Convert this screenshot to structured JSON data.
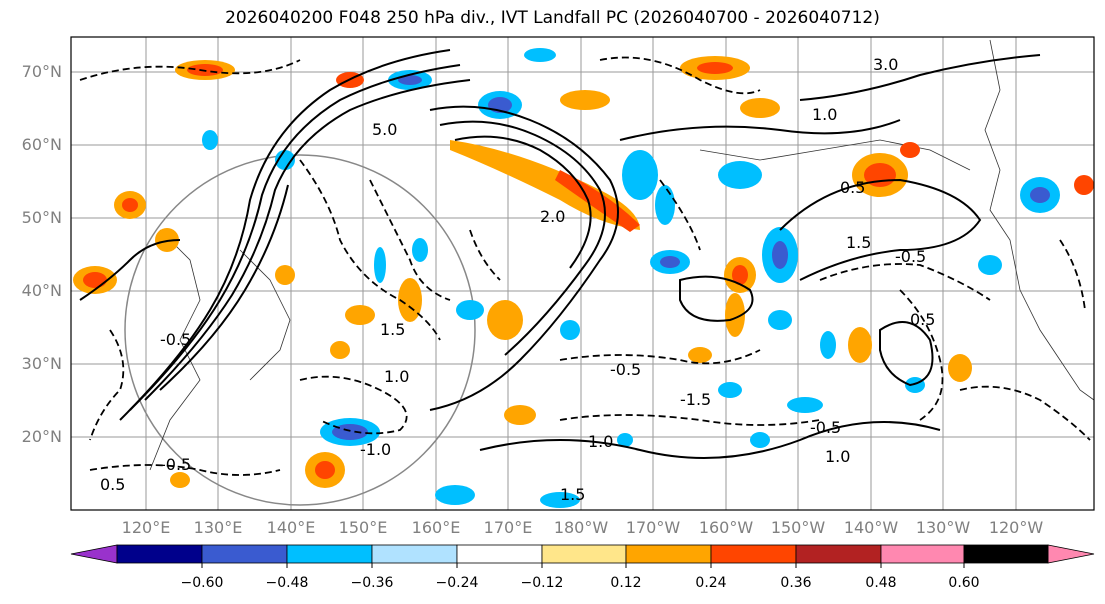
{
  "title": "2026040200 F048 250 hPa div., IVT Landfall PC (2026040700 - 2026040712)",
  "map": {
    "region": "North Pacific",
    "lat_labels": [
      "70°N",
      "60°N",
      "50°N",
      "40°N",
      "30°N",
      "20°N"
    ],
    "lon_labels": [
      "120°E",
      "130°E",
      "140°E",
      "150°E",
      "160°E",
      "170°E",
      "180°W",
      "170°W",
      "160°W",
      "150°W",
      "140°W",
      "130°W",
      "120°W"
    ],
    "contour_labels": [
      {
        "text": "5.0"
      },
      {
        "text": "3.0"
      },
      {
        "text": "1.0"
      },
      {
        "text": "0.5"
      },
      {
        "text": "1.5"
      },
      {
        "text": "-0.5"
      },
      {
        "text": "-1.0"
      },
      {
        "text": "1.5"
      },
      {
        "text": "1.0"
      },
      {
        "text": "-0.5"
      },
      {
        "text": "0.5"
      },
      {
        "text": "2.0"
      },
      {
        "text": "-0.5"
      },
      {
        "text": "0.5"
      },
      {
        "text": "1.0"
      },
      {
        "text": "-1.5"
      },
      {
        "text": "1.5"
      },
      {
        "text": "-0.5"
      },
      {
        "text": "1.0"
      },
      {
        "text": "-0.5"
      }
    ]
  },
  "colorbar": {
    "colors": [
      "#9932cc",
      "#00008b",
      "#3a5bd0",
      "#00bfff",
      "#b0e2ff",
      "#ffffff",
      "#ffe68a",
      "#ffa500",
      "#ff4500",
      "#b22222",
      "#ff88b0"
    ],
    "tick_labels": [
      "−0.60",
      "−0.48",
      "−0.36",
      "−0.24",
      "−0.12",
      "0.12",
      "0.24",
      "0.36",
      "0.48",
      "0.60"
    ]
  }
}
